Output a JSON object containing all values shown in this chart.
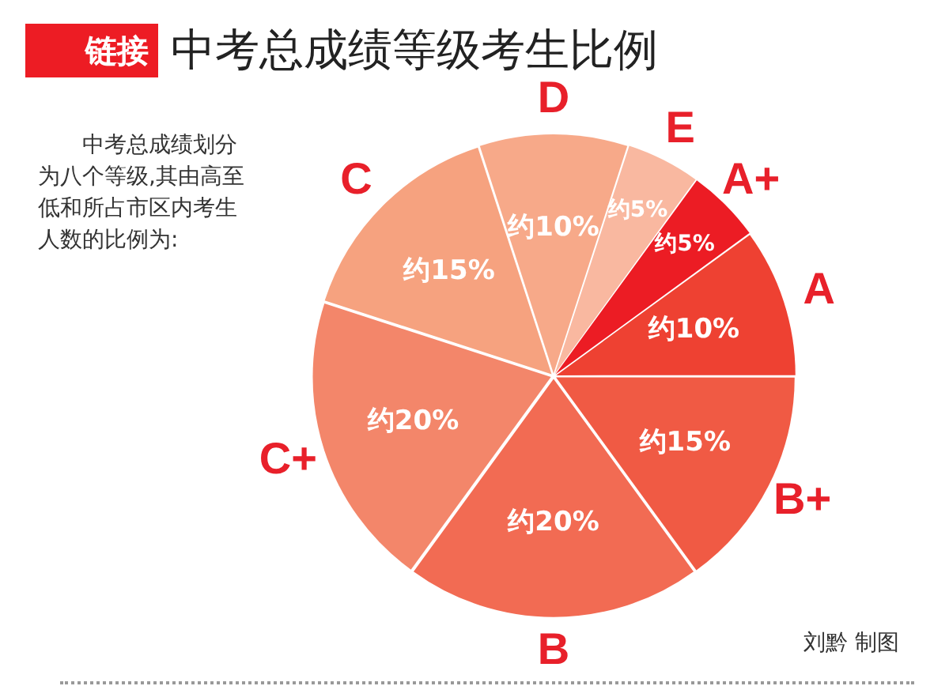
{
  "chart_data": {
    "type": "pie",
    "title": "中考总成绩等级考生比例",
    "categories": [
      "A+",
      "A",
      "B+",
      "B",
      "C+",
      "C",
      "D",
      "E"
    ],
    "values": [
      5,
      10,
      15,
      20,
      20,
      15,
      10,
      5
    ],
    "value_labels": [
      "约5%",
      "约10%",
      "约15%",
      "约20%",
      "约20%",
      "约15%",
      "约10%",
      "约5%"
    ],
    "colors": [
      "#ec1c24",
      "#ee4132",
      "#f05a44",
      "#f26b53",
      "#f3866a",
      "#f6a27f",
      "#f7a989",
      "#f9b8a0"
    ],
    "legend": false,
    "annotations": [
      "链接",
      "中考总成绩划分为八个等级,其由高至低和所占市区内考生人数的比例为:",
      "刘黔 制图"
    ]
  }
}
